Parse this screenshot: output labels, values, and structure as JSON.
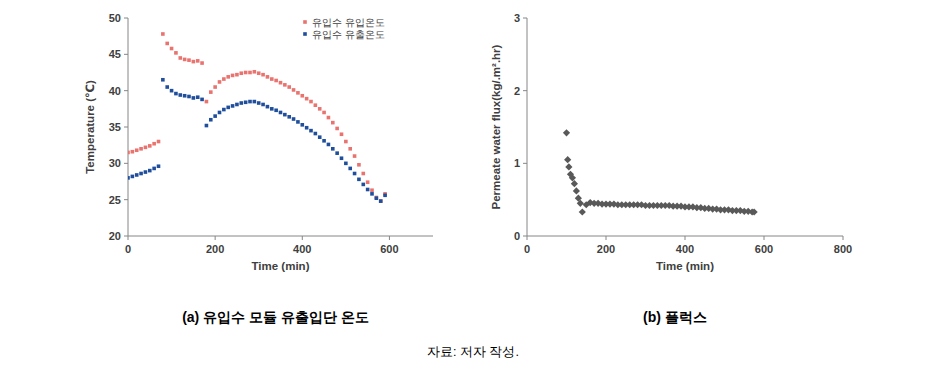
{
  "chart_data": [
    {
      "type": "scatter",
      "caption": "(a) 유입수 모듈 유출입단 온도",
      "x_label": "Time (min)",
      "y_label": "Temperature (℃)",
      "xlim": [
        0,
        700
      ],
      "xticks": [
        0,
        200,
        400,
        600
      ],
      "ylim": [
        20,
        50
      ],
      "yticks": [
        20,
        25,
        30,
        35,
        40,
        45,
        50
      ],
      "grid": false,
      "legend": "upper right",
      "x": [
        0,
        10,
        20,
        30,
        40,
        50,
        60,
        70,
        80,
        90,
        100,
        110,
        120,
        130,
        140,
        150,
        160,
        170,
        180,
        190,
        200,
        210,
        220,
        230,
        240,
        250,
        260,
        270,
        280,
        290,
        300,
        310,
        320,
        330,
        340,
        350,
        360,
        370,
        380,
        390,
        400,
        410,
        420,
        430,
        440,
        450,
        460,
        470,
        480,
        490,
        500,
        510,
        520,
        530,
        540,
        550,
        560,
        570,
        580,
        590
      ],
      "series": [
        {
          "name": "유입수 유입온도",
          "color": "#e8736f",
          "marker": "square",
          "values": [
            31.5,
            31.6,
            31.8,
            32.0,
            32.2,
            32.4,
            32.7,
            33.0,
            47.8,
            46.5,
            45.8,
            45.2,
            44.5,
            44.3,
            44.2,
            44.0,
            44.1,
            43.8,
            38.5,
            39.8,
            40.5,
            41.2,
            41.6,
            41.9,
            42.1,
            42.2,
            42.4,
            42.5,
            42.5,
            42.6,
            42.4,
            42.2,
            41.9,
            41.6,
            41.4,
            41.1,
            40.8,
            40.5,
            40.1,
            39.7,
            39.3,
            38.9,
            38.5,
            38.0,
            37.5,
            37.0,
            36.3,
            35.6,
            34.8,
            34.0,
            33.0,
            32.0,
            31.0,
            29.8,
            28.6,
            27.4,
            26.3,
            25.3,
            24.8,
            25.8
          ]
        },
        {
          "name": "유입수 유출온도",
          "color": "#1f4e9c",
          "marker": "square",
          "values": [
            28.0,
            28.2,
            28.4,
            28.6,
            28.8,
            29.0,
            29.3,
            29.6,
            41.5,
            40.5,
            40.0,
            39.6,
            39.4,
            39.3,
            39.2,
            39.0,
            39.1,
            38.8,
            35.2,
            36.0,
            36.5,
            37.0,
            37.4,
            37.7,
            37.9,
            38.1,
            38.3,
            38.4,
            38.5,
            38.5,
            38.3,
            38.1,
            37.8,
            37.5,
            37.3,
            37.0,
            36.7,
            36.4,
            36.1,
            35.7,
            35.3,
            34.9,
            34.5,
            34.1,
            33.6,
            33.1,
            32.6,
            32.0,
            31.4,
            30.7,
            30.0,
            29.3,
            28.6,
            27.8,
            27.1,
            26.4,
            25.8,
            25.2,
            24.8,
            25.6
          ]
        }
      ]
    },
    {
      "type": "scatter",
      "caption": "(b) 플럭스",
      "x_label": "Time (min)",
      "y_label": "Permeate water flux(kg/.m².hr)",
      "xlim": [
        0,
        800
      ],
      "xticks": [
        0,
        200,
        400,
        600,
        800
      ],
      "ylim": [
        0,
        3
      ],
      "yticks": [
        0,
        1,
        2,
        3
      ],
      "grid": false,
      "x": [
        100,
        103,
        106,
        110,
        115,
        120,
        125,
        130,
        135,
        140,
        150,
        160,
        170,
        180,
        190,
        200,
        210,
        220,
        230,
        240,
        250,
        260,
        270,
        280,
        290,
        300,
        310,
        320,
        330,
        340,
        350,
        360,
        370,
        380,
        390,
        400,
        410,
        420,
        430,
        440,
        450,
        460,
        470,
        480,
        490,
        500,
        510,
        520,
        530,
        540,
        550,
        560,
        570,
        575
      ],
      "series": [
        {
          "name": "Permeate water flux",
          "color": "#595959",
          "marker": "diamond",
          "values": [
            1.42,
            1.05,
            0.95,
            0.85,
            0.8,
            0.72,
            0.62,
            0.52,
            0.45,
            0.33,
            0.43,
            0.46,
            0.45,
            0.45,
            0.44,
            0.44,
            0.44,
            0.44,
            0.43,
            0.43,
            0.43,
            0.43,
            0.43,
            0.43,
            0.43,
            0.42,
            0.42,
            0.42,
            0.42,
            0.42,
            0.42,
            0.42,
            0.41,
            0.41,
            0.41,
            0.4,
            0.4,
            0.4,
            0.39,
            0.39,
            0.38,
            0.38,
            0.37,
            0.37,
            0.36,
            0.36,
            0.36,
            0.35,
            0.35,
            0.35,
            0.34,
            0.34,
            0.33,
            0.33
          ]
        }
      ]
    }
  ],
  "source": "자료: 저자 작성."
}
